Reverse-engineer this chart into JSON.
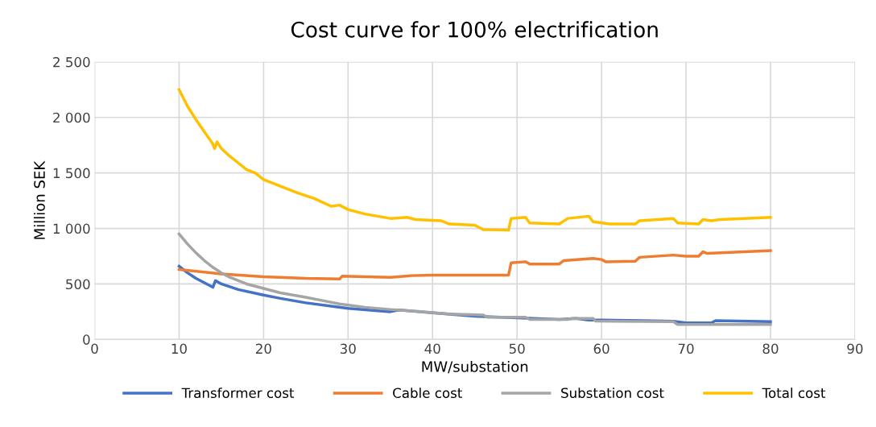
{
  "chart_data": {
    "type": "line",
    "title": "Cost curve for 100% electrification",
    "xlabel": "MW/substation",
    "ylabel": "Million SEK",
    "xlim": [
      0,
      90
    ],
    "xticks": [
      0,
      10,
      20,
      30,
      40,
      50,
      60,
      70,
      80,
      90
    ],
    "ylim": [
      0,
      2500
    ],
    "yticks": [
      0,
      500,
      {
        "value": 1000,
        "label": "1 000"
      },
      {
        "value": 1500,
        "label": "1 500"
      },
      {
        "value": 2000,
        "label": "2 000"
      },
      {
        "value": 2500,
        "label": "2 500"
      }
    ],
    "grid": true,
    "legend": "bottom",
    "marker": "none",
    "line_style": "solid",
    "series": [
      {
        "name": "Transformer cost",
        "color": "#4472c4",
        "x": [
          10,
          11,
          12,
          13,
          14,
          14.3,
          15,
          17,
          20,
          22,
          25,
          28,
          30,
          35,
          36,
          40,
          45,
          50,
          55,
          57,
          58.5,
          60,
          65,
          68.5,
          70,
          73,
          73.5,
          80
        ],
        "values": [
          660,
          600,
          550,
          510,
          470,
          530,
          500,
          450,
          400,
          370,
          330,
          300,
          280,
          250,
          265,
          240,
          210,
          195,
          180,
          190,
          175,
          175,
          170,
          165,
          150,
          150,
          170,
          160
        ]
      },
      {
        "name": "Cable cost",
        "color": "#ed7d31",
        "x": [
          10,
          15,
          20,
          25,
          29,
          29.3,
          35,
          37.5,
          40,
          45,
          49,
          49.3,
          51,
          51.5,
          55,
          55.5,
          59,
          60,
          60.5,
          64,
          64.5,
          68.5,
          70,
          71.5,
          72,
          72.5,
          80
        ],
        "values": [
          630,
          590,
          565,
          550,
          545,
          570,
          560,
          575,
          580,
          580,
          580,
          690,
          700,
          680,
          680,
          710,
          730,
          720,
          700,
          705,
          740,
          760,
          750,
          750,
          790,
          775,
          800
        ]
      },
      {
        "name": "Substation cost",
        "color": "#a5a5a5",
        "x": [
          10,
          11,
          12,
          13,
          14,
          15,
          16,
          18,
          20,
          22,
          25,
          27,
          29,
          32,
          35,
          38,
          42,
          46,
          46.5,
          51,
          51.5,
          56,
          56.5,
          59,
          59.3,
          68.5,
          69,
          80
        ],
        "values": [
          950,
          860,
          780,
          710,
          650,
          600,
          560,
          500,
          460,
          420,
          380,
          350,
          320,
          290,
          270,
          255,
          230,
          220,
          200,
          200,
          180,
          180,
          190,
          190,
          165,
          160,
          135,
          135
        ]
      },
      {
        "name": "Total cost",
        "color": "#ffc000",
        "x": [
          10,
          11,
          12,
          13,
          14,
          14.2,
          14.5,
          15,
          16,
          17,
          18,
          19,
          20,
          22,
          24,
          26,
          28,
          29,
          30,
          32,
          35,
          37,
          38,
          41,
          42,
          45,
          46,
          49,
          49.3,
          51,
          51.5,
          55,
          56,
          58.5,
          59,
          61,
          64,
          64.5,
          68.5,
          69,
          71.5,
          72,
          73,
          74,
          80
        ],
        "values": [
          2250,
          2100,
          1980,
          1870,
          1760,
          1720,
          1780,
          1720,
          1650,
          1590,
          1530,
          1500,
          1440,
          1380,
          1320,
          1270,
          1200,
          1210,
          1170,
          1130,
          1090,
          1100,
          1080,
          1070,
          1040,
          1030,
          990,
          985,
          1090,
          1100,
          1050,
          1040,
          1090,
          1110,
          1060,
          1040,
          1040,
          1070,
          1090,
          1050,
          1040,
          1080,
          1070,
          1080,
          1100
        ]
      }
    ]
  }
}
